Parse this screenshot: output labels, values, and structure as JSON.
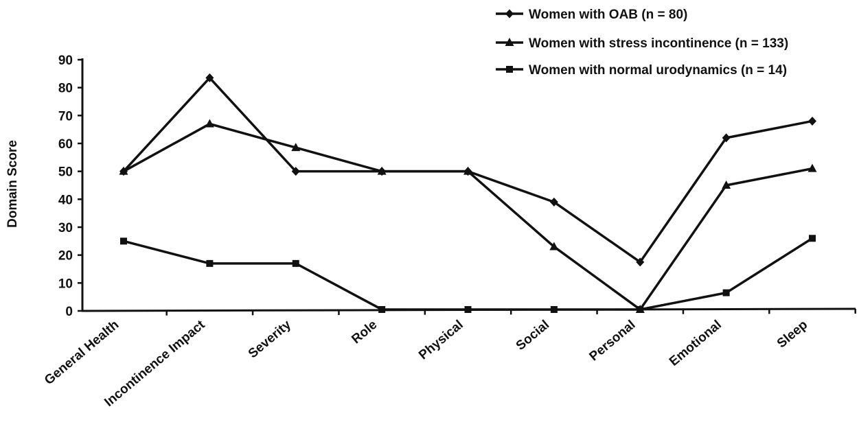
{
  "chart_data": {
    "type": "line",
    "title": "",
    "xlabel": "",
    "ylabel": "Domain Score",
    "ylim": [
      0,
      90
    ],
    "yticks": [
      0,
      10,
      20,
      30,
      40,
      50,
      60,
      70,
      80,
      90
    ],
    "grid": false,
    "legend_position": "top-right",
    "categories": [
      "General Health",
      "Incontinence Impact",
      "Severity",
      "Role",
      "Physical",
      "Social",
      "Personal",
      "Emotional",
      "Sleep"
    ],
    "series": [
      {
        "name": "Women with OAB (n = 80)",
        "marker": "diamond",
        "color": "#111111",
        "values": [
          50,
          83.5,
          50,
          50,
          50,
          39,
          17.5,
          62,
          68
        ]
      },
      {
        "name": "Women with stress incontinence (n = 133)",
        "marker": "triangle",
        "color": "#111111",
        "values": [
          50,
          67,
          58.5,
          50,
          50,
          23,
          0.5,
          45,
          51
        ]
      },
      {
        "name": "Women with normal urodynamics (n = 14)",
        "marker": "square",
        "color": "#111111",
        "values": [
          25,
          17,
          17,
          0.5,
          0.5,
          0.5,
          0.5,
          6.5,
          26
        ]
      }
    ]
  }
}
